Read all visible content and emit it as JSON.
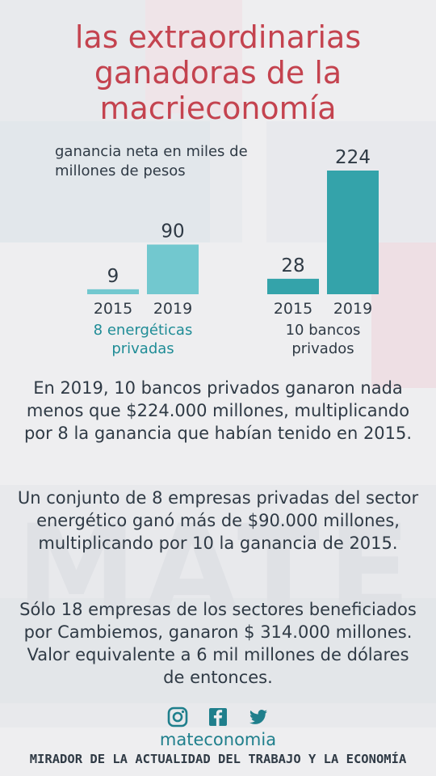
{
  "title_lines": [
    "las extraordinarias",
    "ganadoras de la",
    "macrieconomía"
  ],
  "chart_data": {
    "type": "bar",
    "subtitle": "ganancia neta en miles de millones de pesos",
    "groups": [
      {
        "name": "8 energéticas privadas",
        "categories": [
          "2015",
          "2019"
        ],
        "values": [
          9,
          90
        ],
        "color": "#72c8cf"
      },
      {
        "name": "10 bancos privados",
        "categories": [
          "2015",
          "2019"
        ],
        "values": [
          28,
          224
        ],
        "color": "#34a3aa"
      }
    ],
    "ylim": [
      0,
      224
    ],
    "group_label_color": "#1f8c96",
    "label_color": "#2f3a45"
  },
  "paragraphs": [
    "En  2019, 10 bancos privados ganaron nada menos que $224.000 millones, multiplicando por 8 la ganancia que habían tenido en 2015.",
    "Un conjunto de 8 empresas privadas del sector energético ganó más de $90.000 millones, multiplicando por 10 la ganancia de 2015.",
    "Sólo 18 empresas de los sectores beneficiados por Cambiemos, ganaron $ 314.000 millones. Valor equivalente a 6 mil millones de dólares de entonces."
  ],
  "watermark": "MATE",
  "social": {
    "icons": [
      "instagram-icon",
      "facebook-icon",
      "twitter-icon"
    ],
    "handle": "mateconomia",
    "icon_color": "#1f7f8c"
  },
  "footer": "MIRADOR DE LA ACTUALIDAD DEL TRABAJO Y LA ECONOMÍA"
}
